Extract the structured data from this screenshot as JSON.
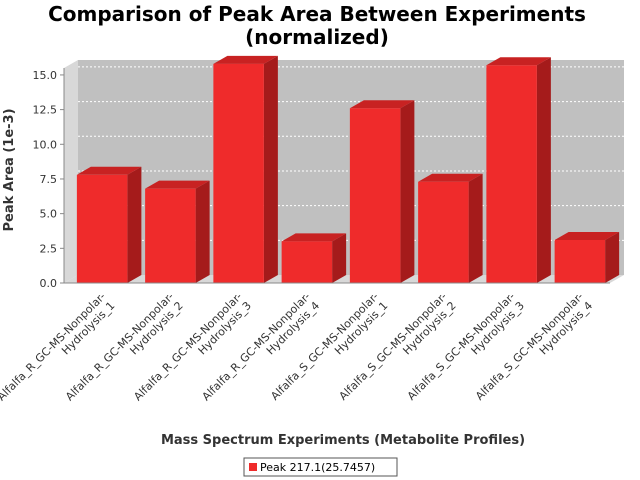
{
  "chart_data": {
    "type": "bar",
    "title": "Comparison of Peak Area Between Experiments",
    "subtitle": "(normalized)",
    "xlabel": "Mass Spectrum Experiments (Metabolite Profiles)",
    "ylabel": "Peak Area (1e-3)",
    "ylim": [
      0,
      15.5
    ],
    "yticks": [
      "0.0",
      "2.5",
      "5.0",
      "7.5",
      "10.0",
      "12.5",
      "15.0"
    ],
    "ytick_values": [
      0,
      2.5,
      5,
      7.5,
      10,
      12.5,
      15
    ],
    "grid": true,
    "legend_position": "bottom",
    "categories": [
      [
        "Alfalfa_R_GC-MS-Nonpolar-",
        "Hydrolysis_1"
      ],
      [
        "Alfalfa_R_GC-MS-Nonpolar-",
        "Hydrolysis_2"
      ],
      [
        "Alfalfa_R_GC-MS-Nonpolar-",
        "Hydrolysis_3"
      ],
      [
        "Alfalfa_R_GC-MS-Nonpolar-",
        "Hydrolysis_4"
      ],
      [
        "Alfalfa_S_GC-MS-Nonpolar-",
        "Hydrolysis_1"
      ],
      [
        "Alfalfa_S_GC-MS-Nonpolar-",
        "Hydrolysis_2"
      ],
      [
        "Alfalfa_S_GC-MS-Nonpolar-",
        "Hydrolysis_3"
      ],
      [
        "Alfalfa_S_GC-MS-Nonpolar-",
        "Hydrolysis_4"
      ]
    ],
    "series": [
      {
        "name": "Peak 217.1(25.7457)",
        "values": [
          7.8,
          6.8,
          15.8,
          3.0,
          12.6,
          7.3,
          15.7,
          3.1
        ]
      }
    ],
    "colors": {
      "bar_front": "#ef2b2b",
      "bar_top": "#c82222",
      "bar_side": "#a51b1b",
      "plot_back": "#c0c0c0",
      "plot_wall": "#d8d8d8",
      "grid": "#ffffff",
      "axis": "#888888"
    }
  }
}
